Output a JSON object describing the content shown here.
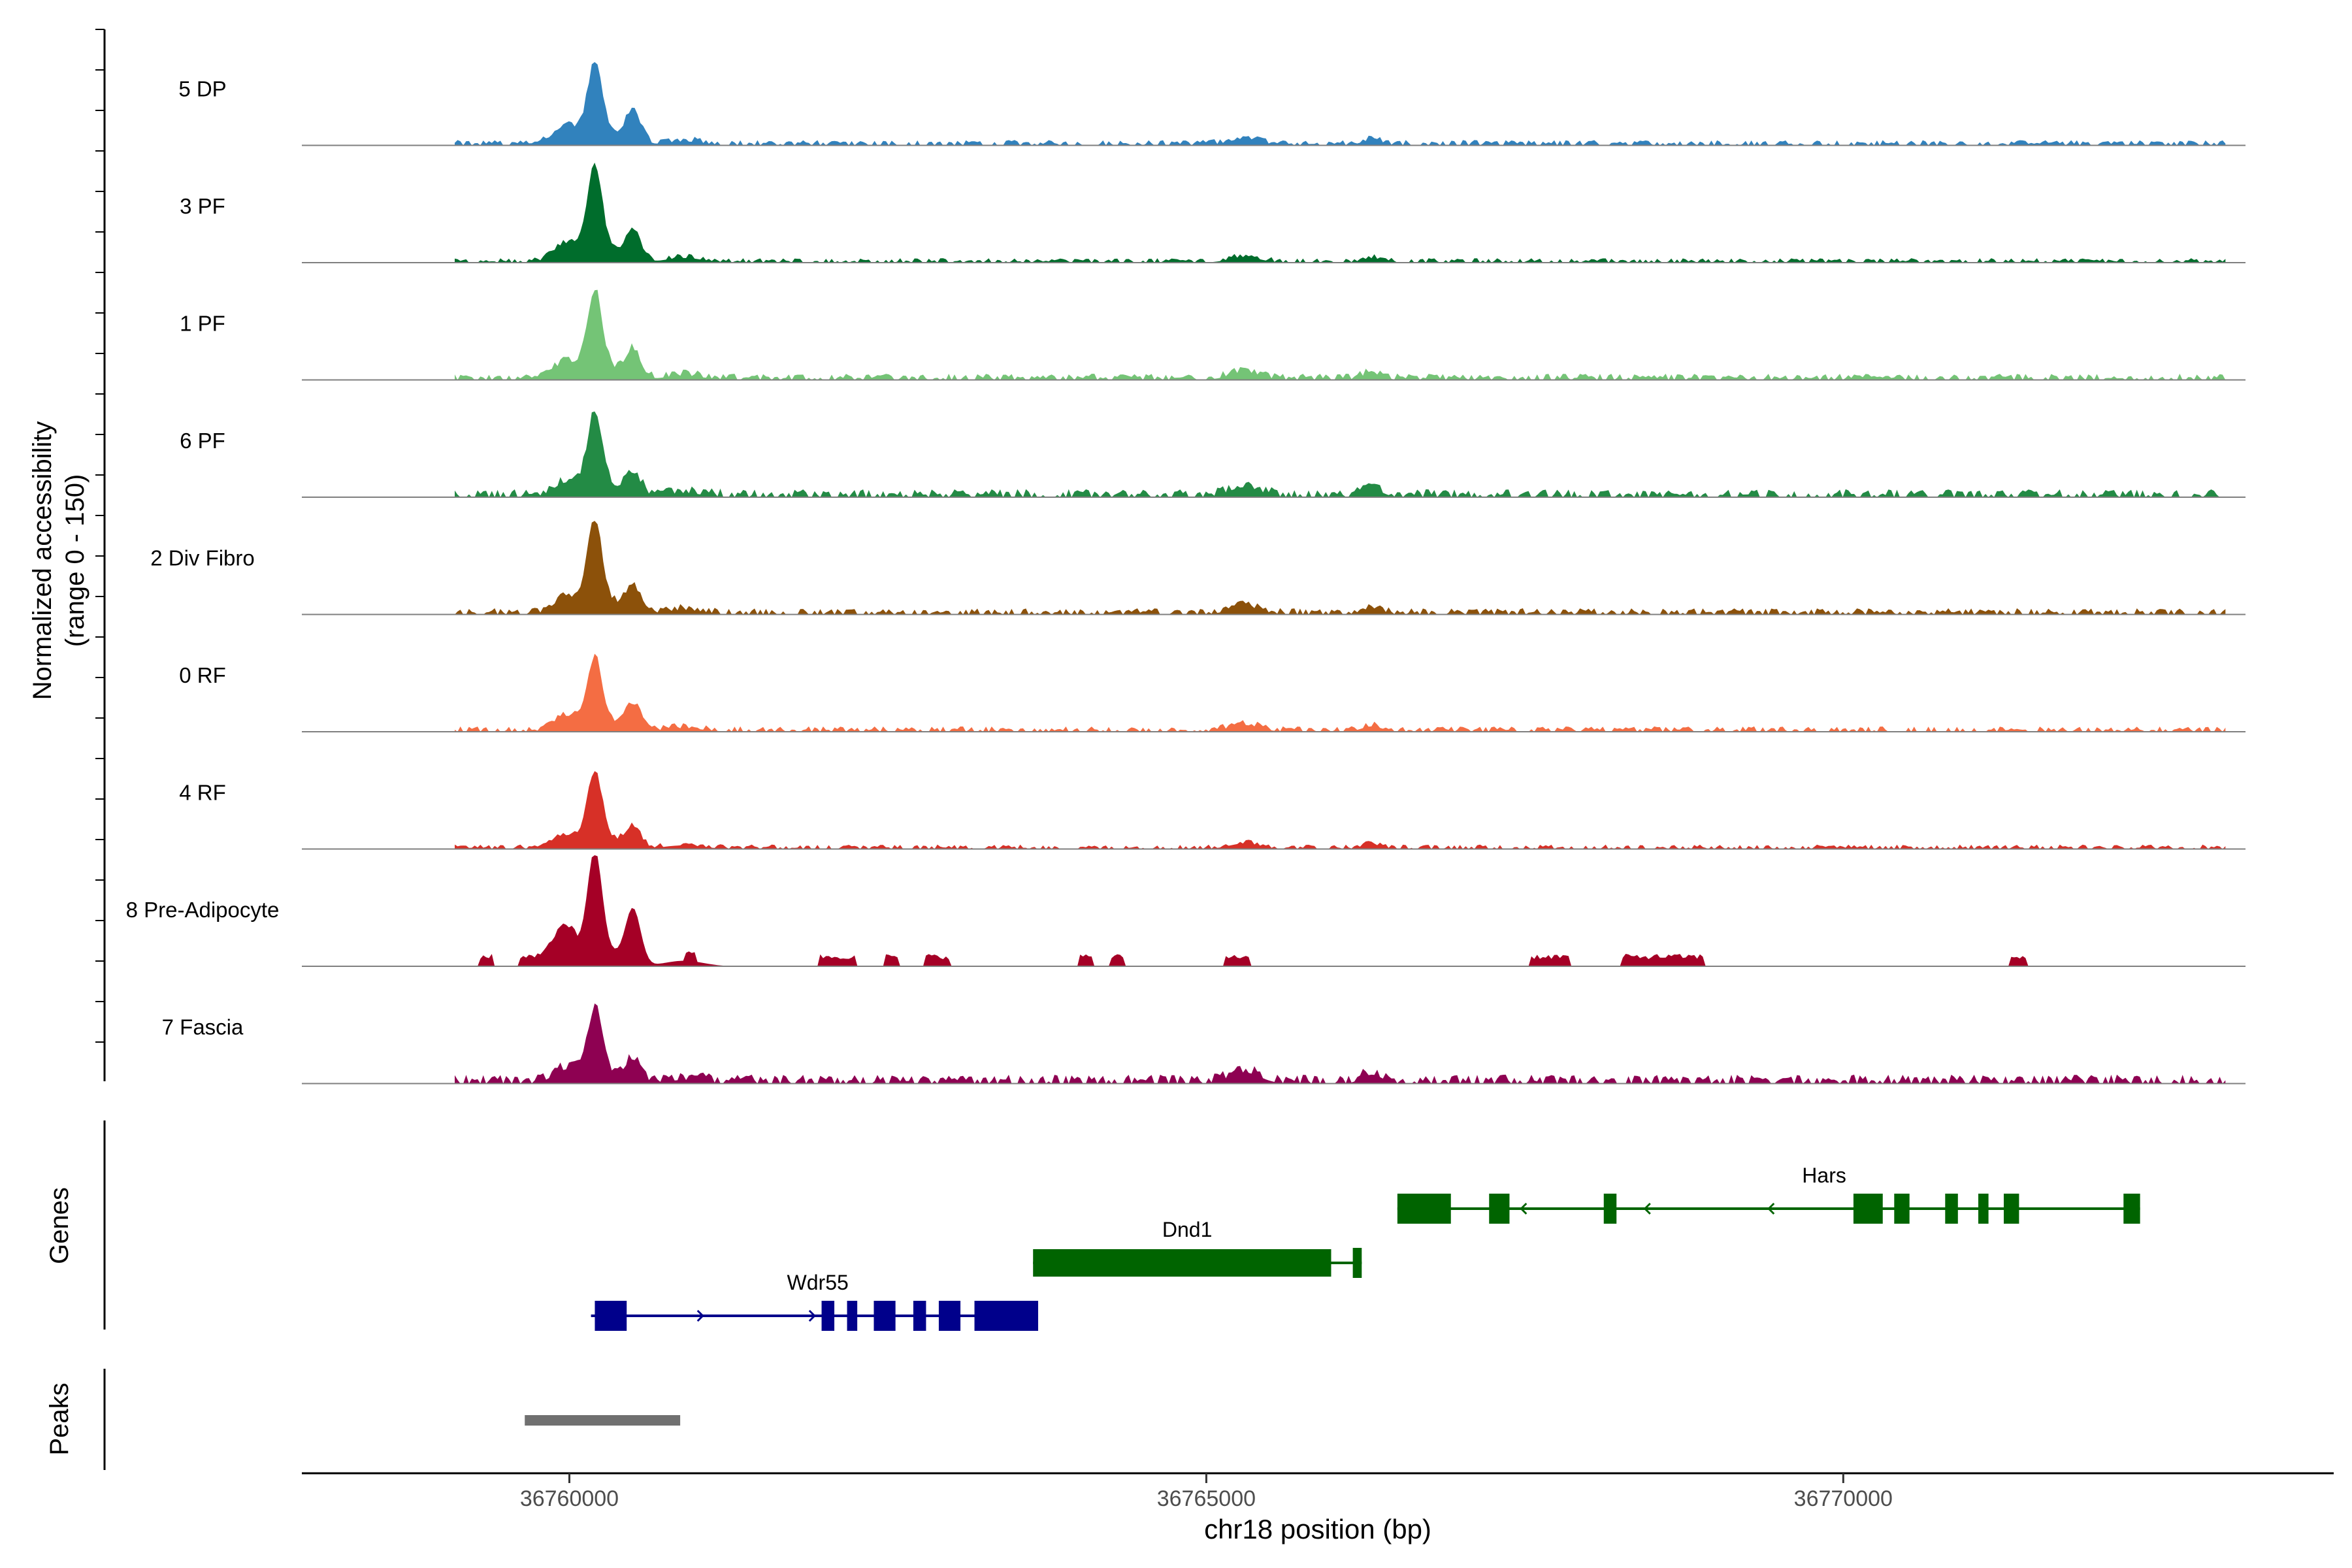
{
  "chart_data": {
    "type": "area",
    "title": "",
    "ylabel_line1": "Normalized accessibility",
    "ylabel_line2": "(range 0 - 150)",
    "ylim": [
      0,
      150
    ],
    "xlabel": "chr18 position (bp)",
    "xlim": [
      36757900,
      36773850
    ],
    "x_ticks": [
      36760000,
      36765000,
      36770000
    ],
    "x_tick_labels": [
      "36760000",
      "36765000",
      "36770000"
    ],
    "genes_label": "Genes",
    "peaks_label": "Peaks",
    "tracks": [
      {
        "name": "5 DP",
        "color": "#3182bd",
        "main_peak": 105,
        "secondary_peak": 45,
        "bg": 6,
        "pattern": "dense"
      },
      {
        "name": "3 PF",
        "color": "#006d2c",
        "main_peak": 125,
        "secondary_peak": 42,
        "bg": 5,
        "pattern": "dense"
      },
      {
        "name": "1 PF",
        "color": "#74c476",
        "main_peak": 115,
        "secondary_peak": 38,
        "bg": 7,
        "pattern": "dense"
      },
      {
        "name": "6 PF",
        "color": "#238b45",
        "main_peak": 110,
        "secondary_peak": 30,
        "bg": 9,
        "pattern": "dense"
      },
      {
        "name": "2 Div Fibro",
        "color": "#8c510a",
        "main_peak": 120,
        "secondary_peak": 35,
        "bg": 7,
        "pattern": "dense"
      },
      {
        "name": "0 RF",
        "color": "#f46d43",
        "main_peak": 95,
        "secondary_peak": 35,
        "bg": 6,
        "pattern": "dense"
      },
      {
        "name": "4 RF",
        "color": "#d73027",
        "main_peak": 100,
        "secondary_peak": 28,
        "bg": 5,
        "pattern": "dense"
      },
      {
        "name": "8 Pre-Adipocyte",
        "color": "#a50026",
        "main_peak": 150,
        "secondary_peak": 75,
        "bg": 12,
        "pattern": "sparse"
      },
      {
        "name": "7 Fascia",
        "color": "#8e0152",
        "main_peak": 95,
        "secondary_peak": 30,
        "bg": 10,
        "pattern": "dense"
      }
    ],
    "genes": [
      {
        "name": "Hars",
        "color": "#006400",
        "start": 36766500,
        "end": 36771850,
        "strand": "-",
        "row": 0,
        "exons": [
          [
            36766500,
            36766920
          ],
          [
            36767220,
            36767380
          ],
          [
            36768120,
            36768220
          ],
          [
            36770080,
            36770310
          ],
          [
            36770400,
            36770520
          ],
          [
            36770800,
            36770900
          ],
          [
            36771060,
            36771140
          ],
          [
            36771260,
            36771380
          ],
          [
            36772200,
            36772330
          ]
        ],
        "label_pos": 36769850
      },
      {
        "name": "Dnd1",
        "color": "#006400",
        "start": 36763640,
        "end": 36765950,
        "strand": "+",
        "row": 1,
        "exons": [
          [
            36763640,
            36765980
          ],
          [
            36766150,
            36766220
          ]
        ],
        "label_pos": 36764850
      },
      {
        "name": "Wdr55",
        "color": "#00008b",
        "start": 36760170,
        "end": 36763680,
        "strand": "+",
        "row": 2,
        "exons": [
          [
            36760200,
            36760450
          ],
          [
            36761980,
            36762080
          ],
          [
            36762180,
            36762260
          ],
          [
            36762390,
            36762560
          ],
          [
            36762700,
            36762800
          ],
          [
            36762900,
            36763070
          ],
          [
            36763180,
            36763680
          ]
        ],
        "label_pos": 36761950
      }
    ],
    "peaks": [
      [
        36759650,
        36760870
      ]
    ]
  }
}
